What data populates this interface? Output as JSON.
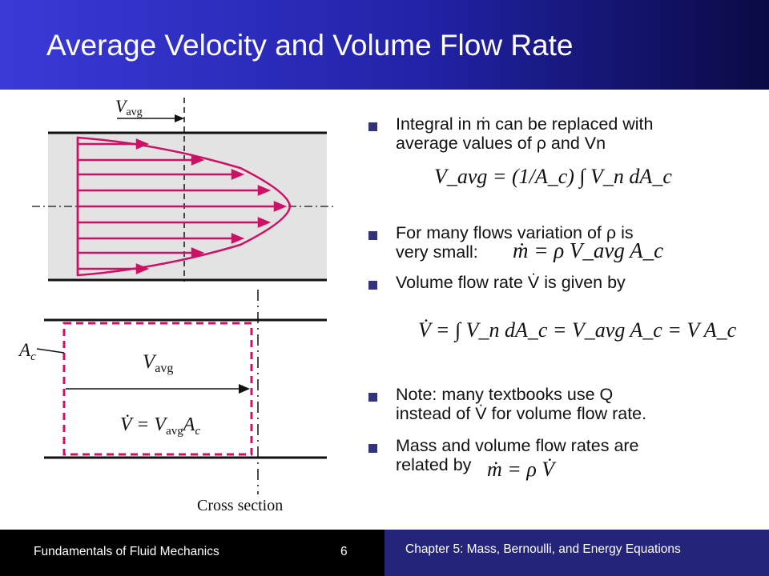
{
  "slide": {
    "title": "Average Velocity and Volume Flow Rate"
  },
  "figure": {
    "top_label": "V",
    "top_label_sub": "avg",
    "ac_label": "A",
    "ac_label_sub": "c",
    "mid_label": "V",
    "mid_label_sub": "avg",
    "eq_label": "V̇ = V",
    "eq_label_sub": "avg",
    "eq_label_tail": "A",
    "eq_label_tail_sub": "c",
    "cross_section": "Cross section",
    "profile_color": "#cc1166"
  },
  "bullets": [
    {
      "text": "Integral in ṁ can be replaced with",
      "line2": "average values of ρ and Vn"
    },
    {
      "text": "For many flows variation of ρ is",
      "line2": "very small:"
    },
    {
      "text": "Volume flow rate V̇ is given by"
    },
    {
      "text": "Note:  many textbooks use Q",
      "line2": "instead of V̇ for volume flow rate."
    },
    {
      "text": "Mass and volume flow rates are",
      "line2": "related by"
    }
  ],
  "equations": {
    "eq1": "V_avg = (1/A_c) ∫ V_n dA_c",
    "eq2": "ṁ = ρ V_avg A_c",
    "eq3": "V̇ = ∫ V_n dA_c = V_avg A_c = V A_c",
    "eq4": "ṁ = ρ V̇"
  },
  "footer": {
    "left": "Fundamentals of Fluid Mechanics",
    "page": "6",
    "right": "Chapter 5: Mass, Bernoulli, and Energy Equations"
  }
}
